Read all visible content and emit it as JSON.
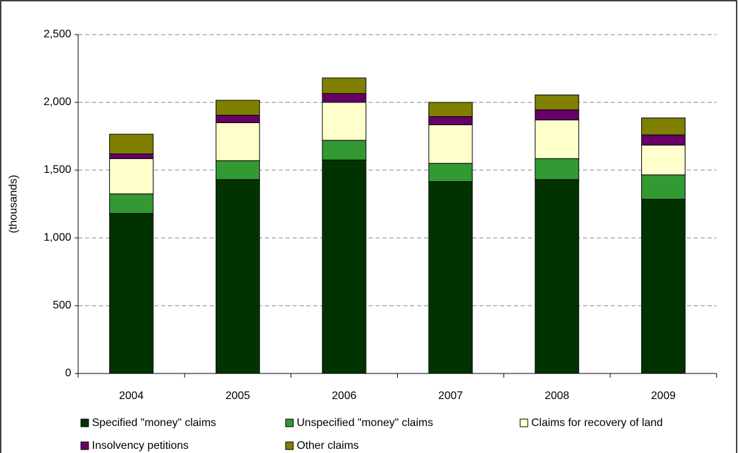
{
  "chart_data": {
    "type": "stacked_bar",
    "ylabel": "(thousands)",
    "categories": [
      "2004",
      "2005",
      "2006",
      "2007",
      "2008",
      "2009"
    ],
    "series": [
      {
        "name": "Specified \"money\" claims",
        "color": "#003300",
        "values": [
          1180,
          1430,
          1575,
          1415,
          1430,
          1285
        ]
      },
      {
        "name": "Unspecified \"money\" claims",
        "color": "#339933",
        "values": [
          145,
          140,
          145,
          135,
          155,
          180
        ]
      },
      {
        "name": "Claims for recovery of land",
        "color": "#ffffcc",
        "values": [
          260,
          280,
          280,
          285,
          285,
          220
        ]
      },
      {
        "name": "Insolvency petitions",
        "color": "#660066",
        "values": [
          35,
          55,
          65,
          60,
          75,
          75
        ]
      },
      {
        "name": "Other claims",
        "color": "#808000",
        "values": [
          145,
          110,
          115,
          105,
          110,
          125
        ]
      }
    ],
    "ylim": [
      0,
      2500
    ],
    "yticks": [
      0,
      500,
      {
        "value": 1000,
        "label": "1,000"
      },
      {
        "value": 1500,
        "label": "1,500"
      },
      {
        "value": 2000,
        "label": "2,000"
      },
      {
        "value": 2500,
        "label": "2,500"
      }
    ],
    "grid": true
  }
}
